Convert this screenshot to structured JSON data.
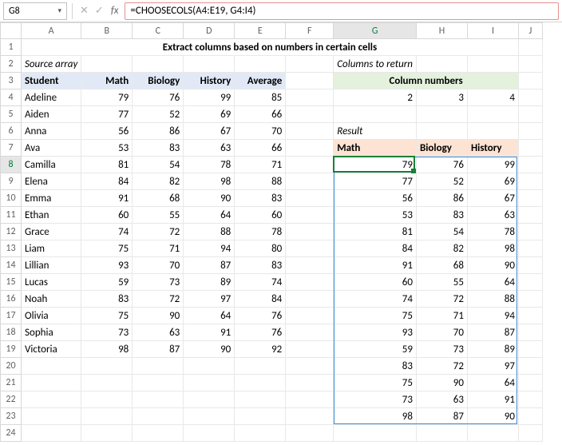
{
  "nameBox": "G8",
  "formula": "=CHOOSECOLS(A4:E19, G4:I4)",
  "colHeaders": [
    "A",
    "B",
    "C",
    "D",
    "E",
    "F",
    "G",
    "H",
    "I",
    "J"
  ],
  "rowCount": 24,
  "activeCol": "G",
  "activeRow": 8,
  "title": "Extract columns based on numbers in certain cells",
  "labels": {
    "srcArray": "Source array",
    "colsReturn": "Columns to return",
    "colNumbers": "Column numbers",
    "result": "Result"
  },
  "sourceHeaders": [
    "Student",
    "Math",
    "Biology",
    "History",
    "Average"
  ],
  "sourceRows": [
    [
      "Adeline",
      79,
      76,
      99,
      85
    ],
    [
      "Aiden",
      77,
      52,
      69,
      66
    ],
    [
      "Anna",
      56,
      86,
      67,
      70
    ],
    [
      "Ava",
      53,
      83,
      63,
      66
    ],
    [
      "Camilla",
      81,
      54,
      78,
      71
    ],
    [
      "Elena",
      84,
      82,
      98,
      88
    ],
    [
      "Emma",
      91,
      68,
      90,
      83
    ],
    [
      "Ethan",
      60,
      55,
      64,
      60
    ],
    [
      "Grace",
      74,
      72,
      88,
      78
    ],
    [
      "Liam",
      75,
      71,
      94,
      80
    ],
    [
      "Lillian",
      93,
      70,
      87,
      83
    ],
    [
      "Lucas",
      59,
      73,
      89,
      74
    ],
    [
      "Noah",
      83,
      72,
      97,
      84
    ],
    [
      "Olivia",
      75,
      90,
      64,
      76
    ],
    [
      "Sophia",
      73,
      63,
      91,
      76
    ],
    [
      "Victoria",
      98,
      87,
      90,
      92
    ]
  ],
  "colNumbers": [
    2,
    3,
    4
  ],
  "resultHeaders": [
    "Math",
    "Biology",
    "History"
  ],
  "resultRows": [
    [
      79,
      76,
      99
    ],
    [
      77,
      52,
      69
    ],
    [
      56,
      86,
      67
    ],
    [
      53,
      83,
      63
    ],
    [
      81,
      54,
      78
    ],
    [
      84,
      82,
      98
    ],
    [
      91,
      68,
      90
    ],
    [
      60,
      55,
      64
    ],
    [
      74,
      72,
      88
    ],
    [
      75,
      71,
      94
    ],
    [
      93,
      70,
      87
    ],
    [
      59,
      73,
      89
    ],
    [
      83,
      72,
      97
    ],
    [
      75,
      90,
      64
    ],
    [
      73,
      63,
      91
    ],
    [
      98,
      87,
      90
    ]
  ],
  "style": {
    "titleFont": 15,
    "srcHeadBg": "#e2e9f6",
    "colNumBg": "#e4f1dd",
    "resultHeadBg": "#fde3d3",
    "formulaBorder": "#e89090",
    "activeBorder": "#1a7f37",
    "spillBorder": "#3b8bd6"
  }
}
